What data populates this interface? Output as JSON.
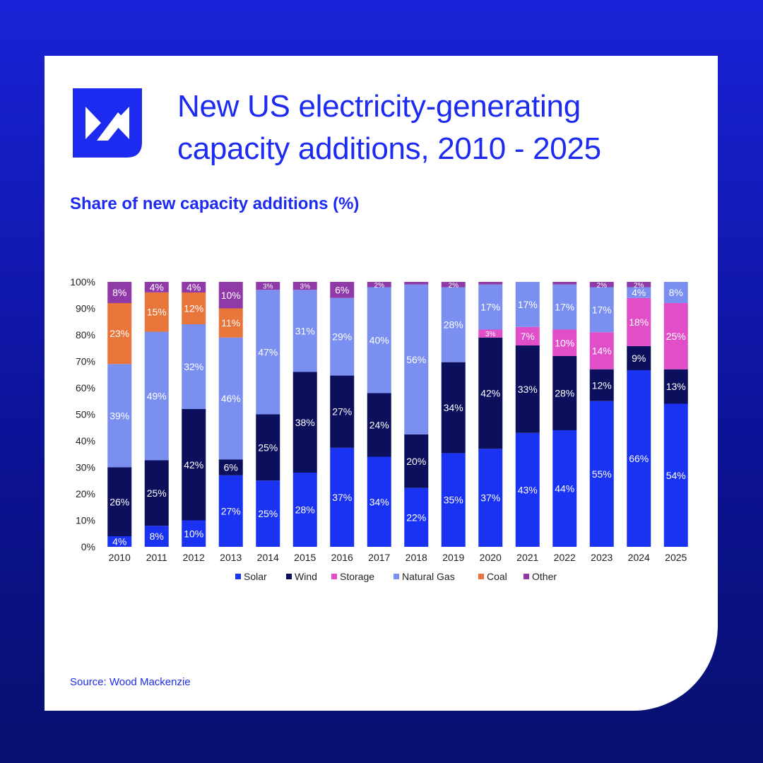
{
  "header": {
    "title_line1": "New US electricity-generating",
    "title_line2": "capacity additions, 2010 - 2025",
    "subtitle": "Share of new capacity additions (%)"
  },
  "footer": {
    "source": "Source: Wood Mackenzie"
  },
  "logo": {
    "icon": "wood-mackenzie-logo-icon",
    "color": "#1d2bf0"
  },
  "chart_data": {
    "type": "bar",
    "stacked": true,
    "categories": [
      "2010",
      "2011",
      "2012",
      "2013",
      "2014",
      "2015",
      "2016",
      "2017",
      "2018",
      "2019",
      "2020",
      "2021",
      "2022",
      "2023",
      "2024",
      "2025"
    ],
    "ylim": [
      0,
      100
    ],
    "yticks": [
      0,
      10,
      20,
      30,
      40,
      50,
      60,
      70,
      80,
      90,
      100
    ],
    "ytick_labels": [
      "0%",
      "10%",
      "20%",
      "30%",
      "40%",
      "50%",
      "60%",
      "70%",
      "80%",
      "90%",
      "100%"
    ],
    "grid": false,
    "legend_position": "bottom",
    "series": [
      {
        "name": "Solar",
        "color": "#1a33f2",
        "values": [
          4,
          8,
          10,
          27,
          25,
          28,
          37,
          34,
          22,
          35,
          37,
          43,
          44,
          55,
          66,
          54
        ]
      },
      {
        "name": "Wind",
        "color": "#0b0f5c",
        "values": [
          26,
          25,
          42,
          6,
          25,
          38,
          27,
          24,
          20,
          34,
          42,
          33,
          28,
          12,
          9,
          13
        ]
      },
      {
        "name": "Storage",
        "color": "#e04fc8",
        "values": [
          0,
          0,
          0,
          0,
          0,
          0,
          0,
          0,
          0,
          0,
          3,
          7,
          10,
          14,
          18,
          25
        ]
      },
      {
        "name": "Natural Gas",
        "color": "#7b8ff0",
        "values": [
          39,
          49,
          32,
          46,
          47,
          31,
          29,
          40,
          56,
          28,
          17,
          17,
          17,
          17,
          4,
          8
        ]
      },
      {
        "name": "Coal",
        "color": "#e8753a",
        "values": [
          23,
          15,
          12,
          11,
          0,
          0,
          0,
          0,
          0,
          0,
          0,
          0,
          0,
          0,
          0,
          0
        ]
      },
      {
        "name": "Other",
        "color": "#8f3aa8",
        "values": [
          8,
          4,
          4,
          10,
          3,
          3,
          6,
          2,
          1,
          2,
          1,
          0,
          1,
          2,
          2,
          0
        ]
      }
    ],
    "data_labels": [
      [
        "4%",
        "26%",
        "",
        "39%",
        "23%",
        "8%"
      ],
      [
        "8%",
        "25%",
        "",
        "49%",
        "15%",
        "4%"
      ],
      [
        "10%",
        "42%",
        "",
        "32%",
        "12%",
        "4%"
      ],
      [
        "27%",
        "6%",
        "",
        "46%",
        "11%",
        "10%"
      ],
      [
        "25%",
        "25%",
        "",
        "47%",
        "",
        "3%"
      ],
      [
        "28%",
        "38%",
        "",
        "31%",
        "",
        "3%"
      ],
      [
        "37%",
        "27%",
        "",
        "29%",
        "",
        "6%"
      ],
      [
        "34%",
        "24%",
        "",
        "40%",
        "",
        "2%"
      ],
      [
        "22%",
        "20%",
        "",
        "56%",
        "",
        ""
      ],
      [
        "35%",
        "34%",
        "",
        "28%",
        "",
        "2%"
      ],
      [
        "37%",
        "42%",
        "3%",
        "17%",
        "",
        ""
      ],
      [
        "43%",
        "33%",
        "7%",
        "17%",
        "",
        ""
      ],
      [
        "44%",
        "28%",
        "10%",
        "17%",
        "",
        ""
      ],
      [
        "55%",
        "12%",
        "14%",
        "17%",
        "",
        "2%"
      ],
      [
        "66%",
        "9%",
        "18%",
        "4%",
        "",
        "2%"
      ],
      [
        "54%",
        "13%",
        "25%",
        "8%",
        "",
        ""
      ]
    ]
  }
}
